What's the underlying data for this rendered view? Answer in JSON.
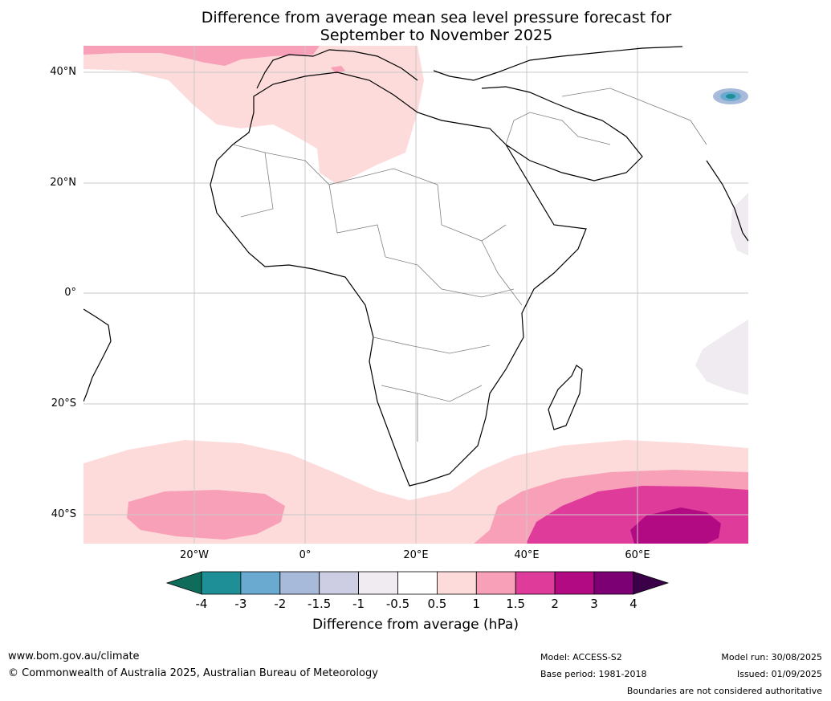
{
  "title_line1": "Difference from average mean sea level pressure forecast for",
  "title_line2": "September to November 2025",
  "lat_labels": [
    "40°N",
    "20°N",
    "0°",
    "20°S",
    "40°S"
  ],
  "lon_labels": [
    "20°W",
    "0°",
    "20°E",
    "40°E",
    "60°E"
  ],
  "colorbar": {
    "label": "Difference from average (hPa)",
    "ticks": [
      "-4",
      "-3",
      "-2",
      "-1.5",
      "-1",
      "-0.5",
      "0.5",
      "1",
      "1.5",
      "2",
      "3",
      "4"
    ],
    "colors": [
      "#0f6b5a",
      "#1e8f96",
      "#6aaad0",
      "#a7bad9",
      "#cdcde3",
      "#efebf0",
      "#ffffff",
      "#fddbdb",
      "#f8a0b8",
      "#de3b9a",
      "#b10a83",
      "#7c0074",
      "#3a0048"
    ]
  },
  "footer": {
    "website": "www.bom.gov.au/climate",
    "copyright": "© Commonwealth of Australia 2025, Australian Bureau of Meteorology",
    "model": "Model: ACCESS-S2",
    "base_period": "Base period: 1981-2018",
    "model_run": "Model run: 30/08/2025",
    "issued": "Issued: 01/09/2025",
    "disclaimer": "Boundaries are not considered authoritative"
  }
}
